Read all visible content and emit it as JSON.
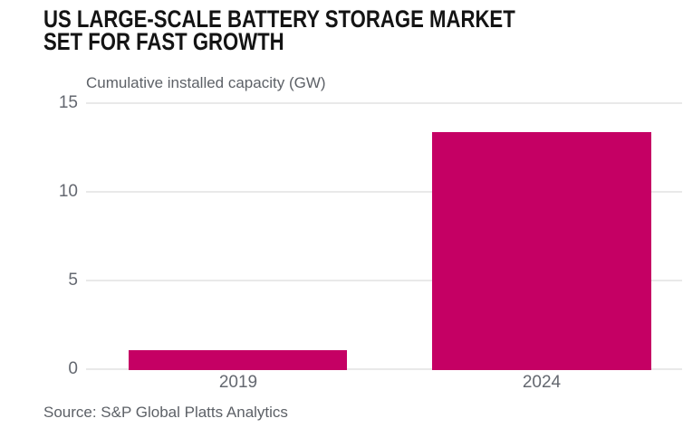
{
  "header": {
    "title_line1": "US LARGE-SCALE BATTERY STORAGE MARKET",
    "title_line2": "SET FOR FAST GROWTH"
  },
  "axis_title": "Cumulative installed capacity (GW)",
  "source": "Source: S&P Global Platts Analytics",
  "colors": {
    "bar": "#c50064",
    "gridline": "#e9e9e9",
    "axis_text": "#646870",
    "muted_text": "#5d6167",
    "title_text": "#141414",
    "background": "#ffffff"
  },
  "chart_data": {
    "type": "bar",
    "title": "US LARGE-SCALE BATTERY STORAGE MARKET SET FOR FAST GROWTH",
    "ylabel": "Cumulative installed capacity (GW)",
    "categories": [
      "2019",
      "2024"
    ],
    "values": [
      1.1,
      13.4
    ],
    "ylim": [
      0,
      15
    ],
    "yticks": [
      0,
      5,
      10,
      15
    ],
    "grid": "horizontal",
    "legend": "none",
    "bar_color": "#c50064",
    "source": "Source: S&P Global Platts Analytics"
  }
}
